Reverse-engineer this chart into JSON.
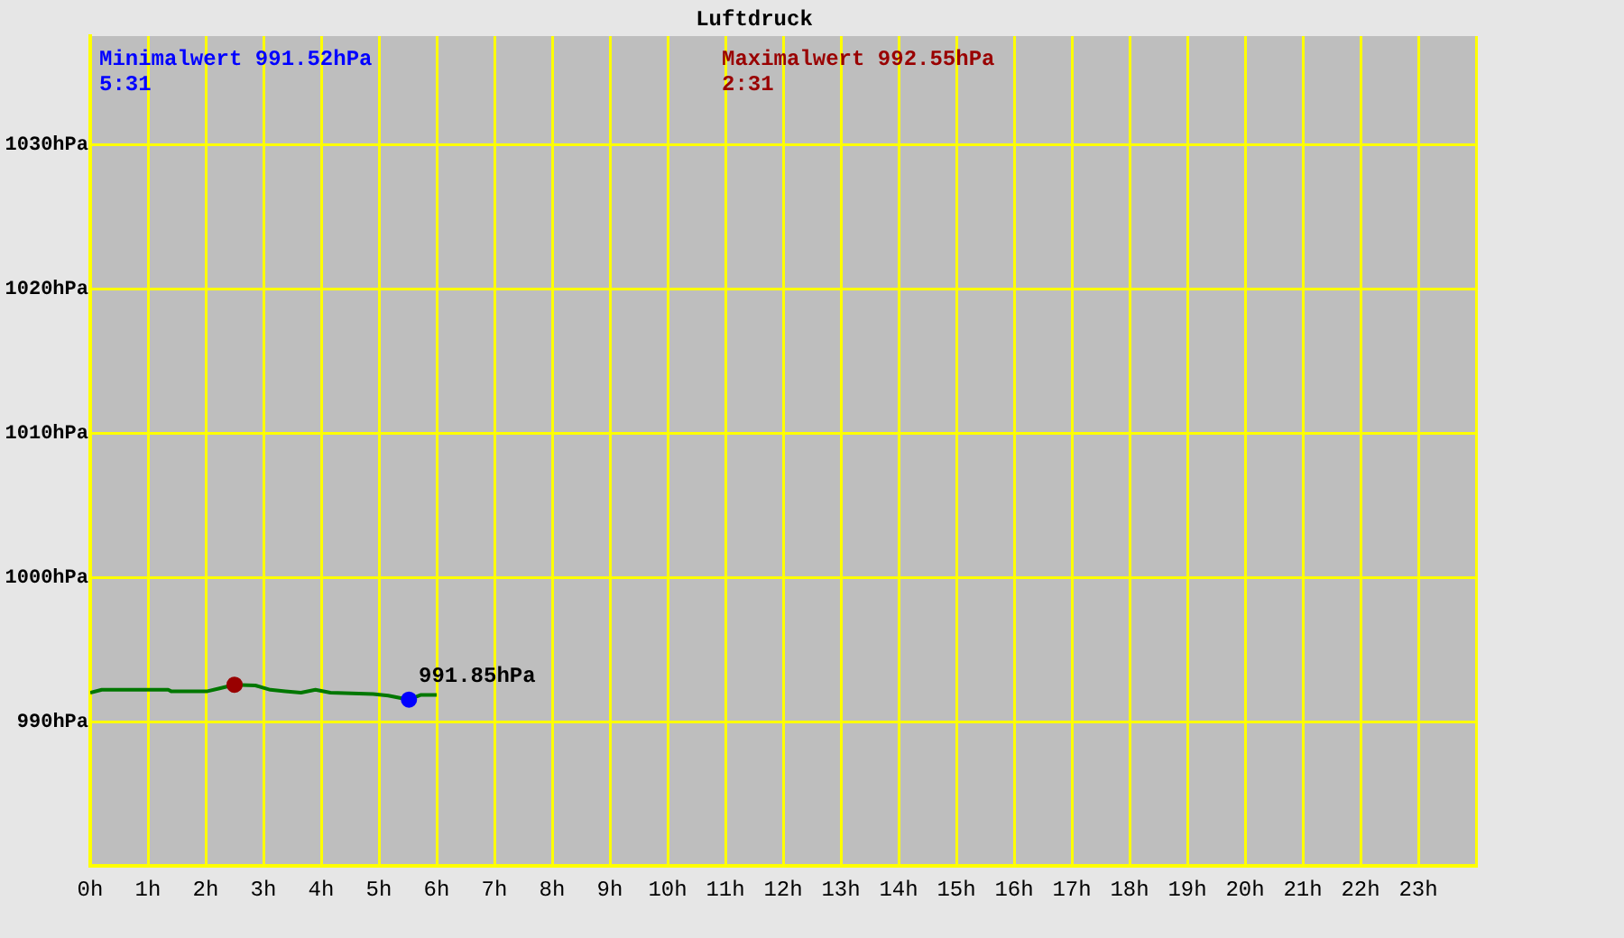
{
  "chart_data": {
    "type": "line",
    "title": "Luftdruck",
    "xlim": [
      0,
      24
    ],
    "xticks": [
      {
        "value": 0,
        "label": "0h"
      },
      {
        "value": 1,
        "label": "1h"
      },
      {
        "value": 2,
        "label": "2h"
      },
      {
        "value": 3,
        "label": "3h"
      },
      {
        "value": 4,
        "label": "4h"
      },
      {
        "value": 5,
        "label": "5h"
      },
      {
        "value": 6,
        "label": "6h"
      },
      {
        "value": 7,
        "label": "7h"
      },
      {
        "value": 8,
        "label": "8h"
      },
      {
        "value": 9,
        "label": "9h"
      },
      {
        "value": 10,
        "label": "10h"
      },
      {
        "value": 11,
        "label": "11h"
      },
      {
        "value": 12,
        "label": "12h"
      },
      {
        "value": 13,
        "label": "13h"
      },
      {
        "value": 14,
        "label": "14h"
      },
      {
        "value": 15,
        "label": "15h"
      },
      {
        "value": 16,
        "label": "16h"
      },
      {
        "value": 17,
        "label": "17h"
      },
      {
        "value": 18,
        "label": "18h"
      },
      {
        "value": 19,
        "label": "19h"
      },
      {
        "value": 20,
        "label": "20h"
      },
      {
        "value": 21,
        "label": "21h"
      },
      {
        "value": 22,
        "label": "22h"
      },
      {
        "value": 23,
        "label": "23h"
      },
      {
        "value": 24,
        "label": null
      }
    ],
    "ylim": [
      980,
      1037.5
    ],
    "yticks": [
      {
        "value": 980,
        "label": null
      },
      {
        "value": 990,
        "label": "990hPa"
      },
      {
        "value": 1000,
        "label": "1000hPa"
      },
      {
        "value": 1010,
        "label": "1010hPa"
      },
      {
        "value": 1020,
        "label": "1020hPa"
      },
      {
        "value": 1030,
        "label": "1030hPa"
      }
    ],
    "grid": true,
    "legend": false,
    "series": [
      {
        "type": "line",
        "color": "#007700",
        "marker": "none",
        "x": [
          0,
          0.2,
          1.35,
          1.4,
          2.03,
          2.24,
          2.5,
          2.86,
          3.12,
          3.38,
          3.65,
          3.9,
          4.16,
          4.9,
          5.16,
          5.52,
          5.73,
          6.0
        ],
        "values": [
          992.0,
          992.2,
          992.2,
          992.1,
          992.1,
          992.3,
          992.55,
          992.5,
          992.2,
          992.1,
          992.0,
          992.2,
          992.0,
          991.9,
          991.8,
          991.52,
          991.85,
          991.85
        ]
      },
      {
        "type": "scatter",
        "color": "#0000ff",
        "marker": "circle",
        "x": [
          5.52
        ],
        "values": [
          991.52
        ]
      },
      {
        "type": "scatter",
        "color": "#990000",
        "marker": "circle",
        "x": [
          2.5
        ],
        "values": [
          992.55
        ]
      }
    ],
    "annotations": [
      "Minimalwert 991.52hPa\n5:31",
      "Maximalwert 992.55hPa\n2:31",
      {
        "text": "991.85hPa",
        "x": 6.0,
        "y": 991.85
      }
    ]
  }
}
